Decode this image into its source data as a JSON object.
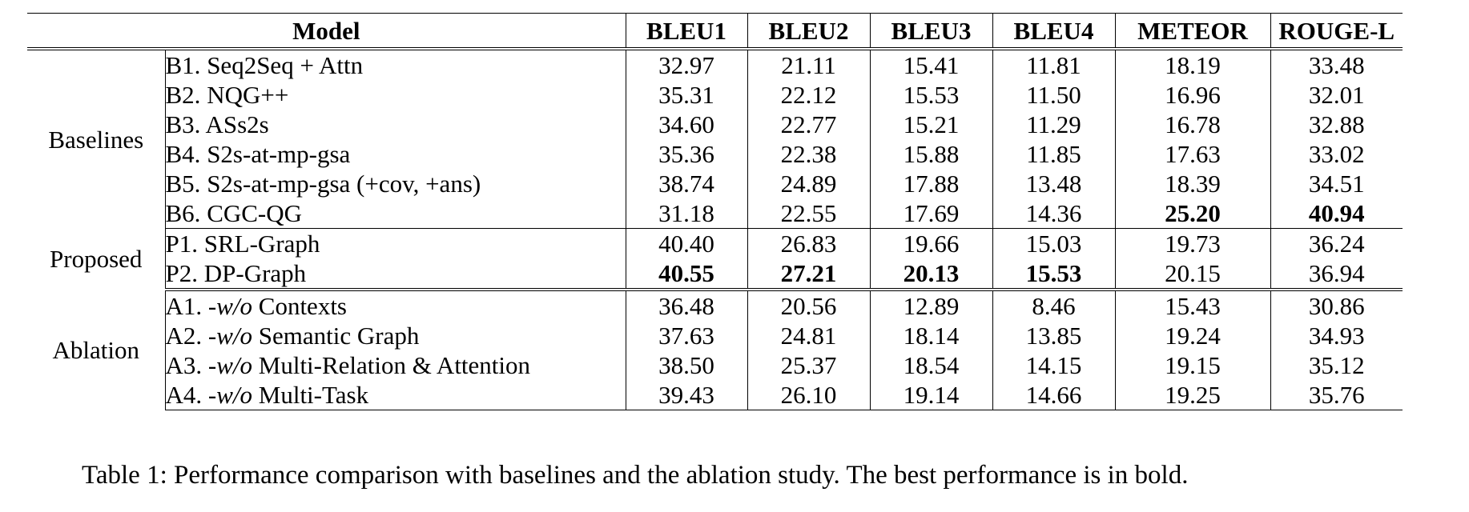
{
  "table": {
    "header_model": "Model",
    "metrics": [
      "BLEU1",
      "BLEU2",
      "BLEU3",
      "BLEU4",
      "METEOR",
      "ROUGE-L"
    ],
    "groups": [
      {
        "label": "Baselines",
        "rows": [
          {
            "prefix": "B1. ",
            "wo": "",
            "name": "Seq2Seq + Attn",
            "values": [
              "32.97",
              "21.11",
              "15.41",
              "11.81",
              "18.19",
              "33.48"
            ],
            "best": [
              false,
              false,
              false,
              false,
              false,
              false
            ]
          },
          {
            "prefix": "B2. ",
            "wo": "",
            "name": "NQG++",
            "values": [
              "35.31",
              "22.12",
              "15.53",
              "11.50",
              "16.96",
              "32.01"
            ],
            "best": [
              false,
              false,
              false,
              false,
              false,
              false
            ]
          },
          {
            "prefix": "B3. ",
            "wo": "",
            "name": "ASs2s",
            "values": [
              "34.60",
              "22.77",
              "15.21",
              "11.29",
              "16.78",
              "32.88"
            ],
            "best": [
              false,
              false,
              false,
              false,
              false,
              false
            ]
          },
          {
            "prefix": "B4. ",
            "wo": "",
            "name": "S2s-at-mp-gsa",
            "values": [
              "35.36",
              "22.38",
              "15.88",
              "11.85",
              "17.63",
              "33.02"
            ],
            "best": [
              false,
              false,
              false,
              false,
              false,
              false
            ]
          },
          {
            "prefix": "B5. ",
            "wo": "",
            "name": "S2s-at-mp-gsa (+cov, +ans)",
            "values": [
              "38.74",
              "24.89",
              "17.88",
              "13.48",
              "18.39",
              "34.51"
            ],
            "best": [
              false,
              false,
              false,
              false,
              false,
              false
            ]
          },
          {
            "prefix": "B6. ",
            "wo": "",
            "name": "CGC-QG",
            "values": [
              "31.18",
              "22.55",
              "17.69",
              "14.36",
              "25.20",
              "40.94"
            ],
            "best": [
              false,
              false,
              false,
              false,
              true,
              true
            ]
          }
        ]
      },
      {
        "label": "Proposed",
        "rows": [
          {
            "prefix": "P1. ",
            "wo": "",
            "name": "SRL-Graph",
            "values": [
              "40.40",
              "26.83",
              "19.66",
              "15.03",
              "19.73",
              "36.24"
            ],
            "best": [
              false,
              false,
              false,
              false,
              false,
              false
            ]
          },
          {
            "prefix": "P2. ",
            "wo": "",
            "name": "DP-Graph",
            "values": [
              "40.55",
              "27.21",
              "20.13",
              "15.53",
              "20.15",
              "36.94"
            ],
            "best": [
              true,
              true,
              true,
              true,
              false,
              false
            ]
          }
        ]
      },
      {
        "label": "Ablation",
        "rows": [
          {
            "prefix": "A1. ",
            "wo": "-w/o",
            "name": " Contexts",
            "values": [
              "36.48",
              "20.56",
              "12.89",
              "8.46",
              "15.43",
              "30.86"
            ],
            "best": [
              false,
              false,
              false,
              false,
              false,
              false
            ]
          },
          {
            "prefix": "A2. ",
            "wo": "-w/o",
            "name": " Semantic Graph",
            "values": [
              "37.63",
              "24.81",
              "18.14",
              "13.85",
              "19.24",
              "34.93"
            ],
            "best": [
              false,
              false,
              false,
              false,
              false,
              false
            ]
          },
          {
            "prefix": "A3. ",
            "wo": "-w/o",
            "name": " Multi-Relation & Attention",
            "values": [
              "38.50",
              "25.37",
              "18.54",
              "14.15",
              "19.15",
              "35.12"
            ],
            "best": [
              false,
              false,
              false,
              false,
              false,
              false
            ]
          },
          {
            "prefix": "A4. ",
            "wo": "-w/o",
            "name": " Multi-Task",
            "values": [
              "39.43",
              "26.10",
              "19.14",
              "14.66",
              "19.25",
              "35.76"
            ],
            "best": [
              false,
              false,
              false,
              false,
              false,
              false
            ]
          }
        ]
      }
    ]
  },
  "caption": "Table 1: Performance comparison with baselines and the ablation study. The best performance is in bold."
}
